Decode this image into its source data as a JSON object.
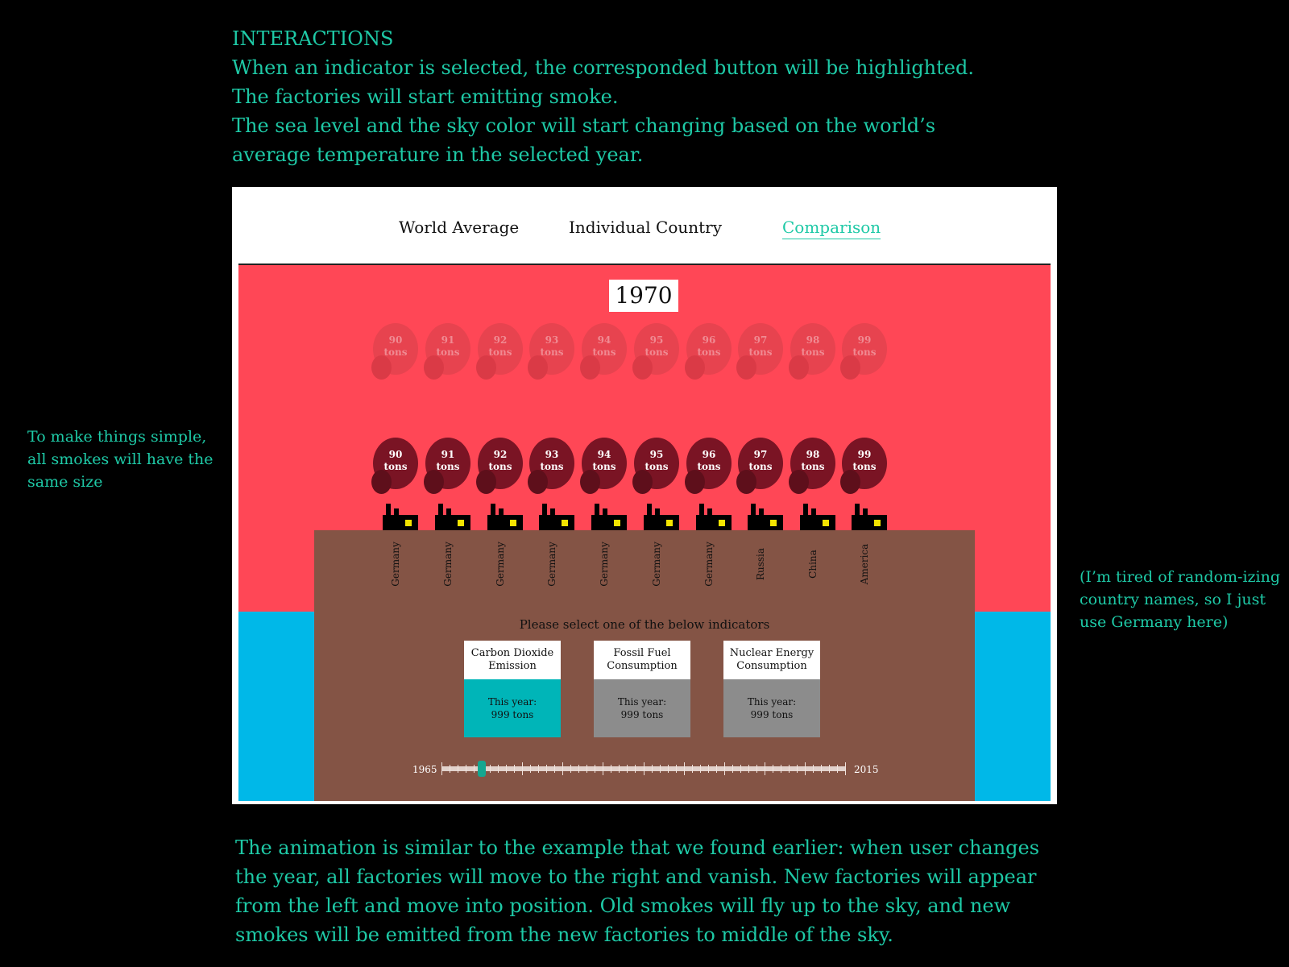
{
  "notes": {
    "top_lines": [
      "INTERACTIONS",
      "When an indicator is selected, the corresponded button will be highlighted.",
      "The factories will start emitting smoke.",
      "The sea level and the sky color will start changing based on the world’s",
      "average temperature in the selected year."
    ],
    "left": "To make things simple, all smokes will have the same size",
    "right": "(I’m tired of random-izing country names, so I just use Germany here)",
    "bottom_lines": [
      "The animation is similar to the example that we found earlier: when user changes",
      "the year, all factories will move to the right and vanish. New factories will appear",
      "from the left and move into position. Old smokes will fly up to the sky, and new",
      "smokes will be emitted from the new factories to middle of the sky."
    ]
  },
  "nav": {
    "world_average": "World Average",
    "individual_country": "Individual Country",
    "comparison": "Comparison",
    "active": "Comparison"
  },
  "year": "1970",
  "smoke_unit": "tons",
  "smoke_top": [
    "90",
    "91",
    "92",
    "93",
    "94",
    "95",
    "96",
    "97",
    "98",
    "99"
  ],
  "smoke_active": [
    "90",
    "91",
    "92",
    "93",
    "94",
    "95",
    "96",
    "97",
    "98",
    "99"
  ],
  "countries": [
    "Germany",
    "Germany",
    "Germany",
    "Germany",
    "Germany",
    "Germany",
    "Germany",
    "Russia",
    "China",
    "America"
  ],
  "indicators": {
    "prompt": "Please select one of the below indicators",
    "items": [
      {
        "title": "Carbon Dioxide Emission",
        "line1": "This year:",
        "line2": "999 tons",
        "selected": true
      },
      {
        "title": "Fossil Fuel Consumption",
        "line1": "This year:",
        "line2": "999 tons",
        "selected": false
      },
      {
        "title": "Nuclear Energy Consumption",
        "line1": "This year:",
        "line2": "999 tons",
        "selected": false
      }
    ]
  },
  "slider": {
    "min_label": "1965",
    "max_label": "2015",
    "min": 1965,
    "max": 2015,
    "value": 1970
  },
  "colors": {
    "accent": "#1ec9a6",
    "sky": "#ff4756",
    "sea": "#00b8e8",
    "ground": "#845445",
    "selected_indicator": "#00b5b8"
  }
}
